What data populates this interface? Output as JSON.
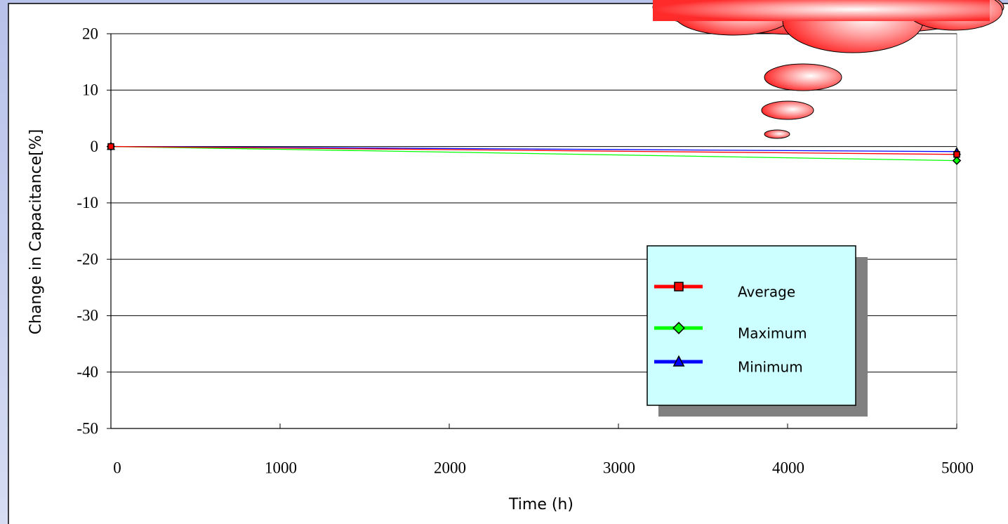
{
  "chart_data": {
    "type": "line",
    "x_label": "Time (h)",
    "y_label": "Change in Capacitance[%]",
    "x": [
      0,
      5000
    ],
    "series": [
      {
        "name": "Average",
        "color": "#ff0000",
        "marker": "square",
        "values": [
          0,
          -1.4
        ]
      },
      {
        "name": "Maximum",
        "color": "#00ff00",
        "marker": "diamond",
        "values": [
          0,
          -2.5
        ]
      },
      {
        "name": "Minimum",
        "color": "#0000ff",
        "marker": "triangle",
        "values": [
          0,
          -0.9
        ]
      }
    ],
    "xlim": [
      0,
      5000
    ],
    "ylim": [
      -50,
      20
    ],
    "xticks": [
      0,
      1000,
      2000,
      3000,
      4000,
      5000
    ],
    "yticks": [
      -50,
      -40,
      -30,
      -20,
      -10,
      0,
      10,
      20
    ],
    "grid": true
  }
}
